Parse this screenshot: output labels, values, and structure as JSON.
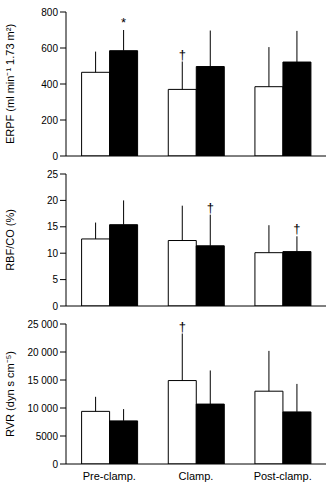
{
  "chart_data": [
    {
      "type": "bar",
      "y_label": "ERPF (ml min⁻¹ 1.73 m²)",
      "categories": [
        "Pre-clamp.",
        "Clamp.",
        "Post-clamp."
      ],
      "ylim": [
        0,
        800
      ],
      "yticks": [
        0,
        200,
        400,
        600,
        800
      ],
      "tick_labels": "y",
      "series": [
        {
          "color": "#ffffff",
          "values": [
            465,
            370,
            385
          ],
          "errors": [
            115,
            155,
            220
          ],
          "annotations": [
            null,
            "†",
            null
          ]
        },
        {
          "color": "#000000",
          "values": [
            585,
            497,
            522
          ],
          "errors": [
            115,
            200,
            173
          ],
          "annotations": [
            "*",
            null,
            null
          ]
        }
      ]
    },
    {
      "type": "bar",
      "y_label": "RBF/CO (%)",
      "categories": [
        "Pre-clamp.",
        "Clamp.",
        "Post-clamp."
      ],
      "ylim": [
        0,
        25
      ],
      "yticks": [
        0,
        5,
        10,
        15,
        20,
        25
      ],
      "tick_labels": "y",
      "series": [
        {
          "color": "#ffffff",
          "values": [
            12.7,
            12.4,
            10.1
          ],
          "errors": [
            3.1,
            6.6,
            5.2
          ],
          "annotations": [
            null,
            null,
            null
          ]
        },
        {
          "color": "#000000",
          "values": [
            15.4,
            11.4,
            10.3
          ],
          "errors": [
            4.6,
            5.9,
            2.9
          ],
          "annotations": [
            null,
            "†",
            "†"
          ]
        }
      ]
    },
    {
      "type": "bar",
      "y_label": "RVR (dyn s cm⁻⁵)",
      "categories": [
        "Pre-clamp.",
        "Clamp.",
        "Post-clamp."
      ],
      "ylim": [
        0,
        25000
      ],
      "yticks": [
        0,
        5000,
        {
          "value": 10000,
          "label": "10 000"
        },
        {
          "value": 15000,
          "label": "15 000"
        },
        {
          "value": 20000,
          "label": "20 000"
        },
        {
          "value": 25000,
          "label": "25 000"
        }
      ],
      "tick_labels": true,
      "series": [
        {
          "color": "#ffffff",
          "values": [
            9400,
            14900,
            13000
          ],
          "errors": [
            2600,
            8400,
            7200
          ],
          "annotations": [
            null,
            "†",
            null
          ]
        },
        {
          "color": "#000000",
          "values": [
            7700,
            10700,
            9300
          ],
          "errors": [
            2100,
            6000,
            5000
          ],
          "annotations": [
            null,
            null,
            null
          ]
        }
      ]
    }
  ]
}
